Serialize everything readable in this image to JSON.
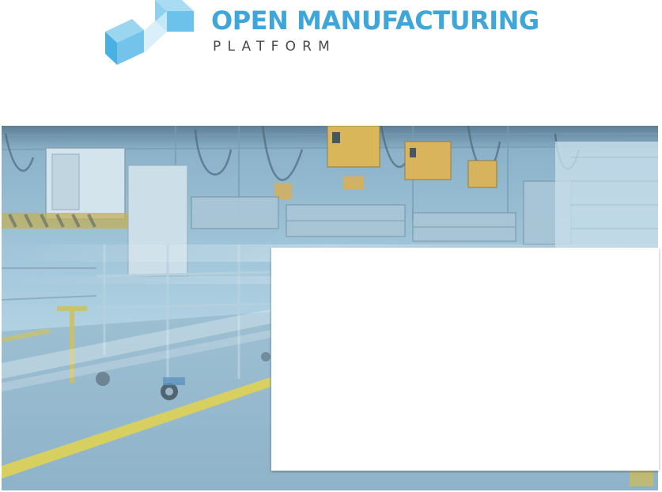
{
  "brand": {
    "title": "OPEN MANUFACTURING",
    "subtitle": "PLATFORM",
    "logo_icon": "stacked-cubes-logo-icon",
    "accent_color": "#3ea6d8",
    "subtitle_color": "#4a4a4a"
  },
  "hero": {
    "image_icon": "factory-floor-photo",
    "tint_color": "#a9cde0"
  },
  "card": {
    "background_color": "#ffffff"
  }
}
